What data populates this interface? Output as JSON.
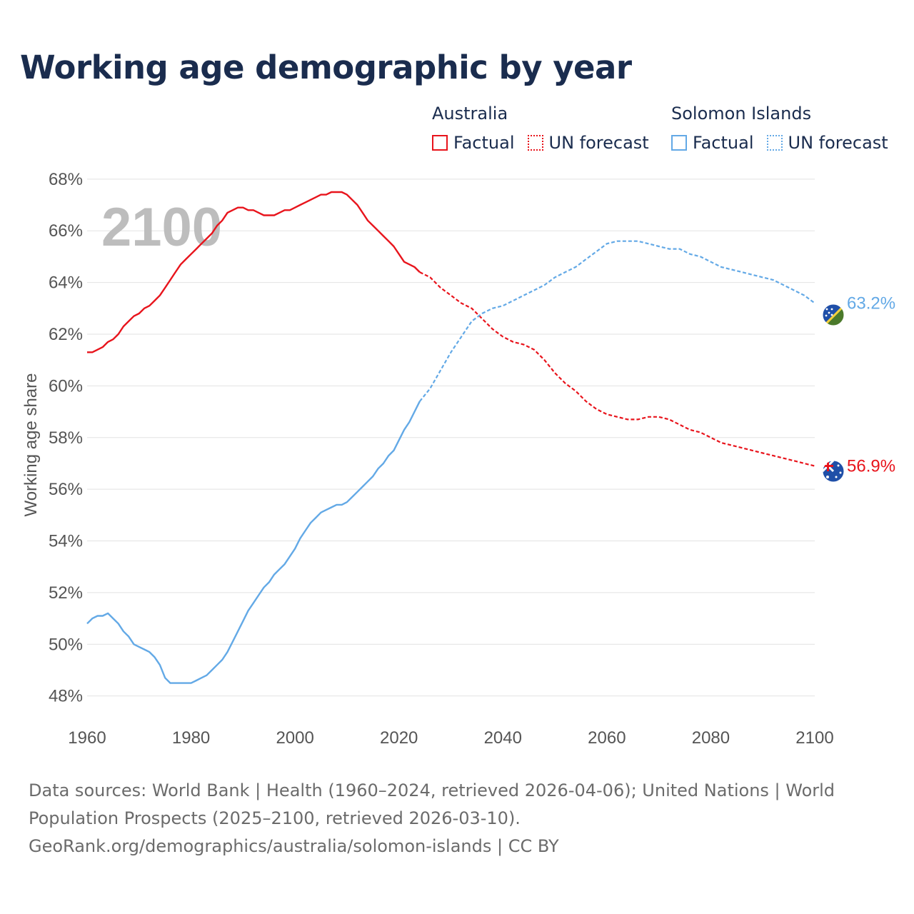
{
  "page": {
    "title": "Working age demographic by year",
    "footer_sources": "Data sources: World Bank | Health (1960–2024, retrieved 2026-04-06); United Nations | World Population Prospects (2025–2100, retrieved 2026-03-10).",
    "footer_link": "GeoRank.org/demographics/australia/solomon-islands | CC BY"
  },
  "legend": {
    "groups": [
      {
        "name": "Australia",
        "factual_label": "Factual",
        "forecast_label": "UN forecast",
        "color": "#e8141c"
      },
      {
        "name": "Solomon Islands",
        "factual_label": "Factual",
        "forecast_label": "UN forecast",
        "color": "#63a9e6"
      }
    ]
  },
  "chart_data": {
    "type": "line",
    "title": "Working age demographic by year",
    "xlabel": "",
    "ylabel": "Working age share",
    "year_watermark": "2100",
    "xlim": [
      1960,
      2100
    ],
    "ylim": [
      47.3,
      68.3
    ],
    "x_ticks": [
      1960,
      1980,
      2000,
      2020,
      2040,
      2060,
      2080,
      2100
    ],
    "y_ticks": [
      48,
      50,
      52,
      54,
      56,
      58,
      60,
      62,
      64,
      66,
      68
    ],
    "y_tick_labels": [
      "48%",
      "50%",
      "52%",
      "54%",
      "56%",
      "58%",
      "60%",
      "62%",
      "64%",
      "66%",
      "68%"
    ],
    "forecast_start": 2024,
    "series": [
      {
        "name": "Australia",
        "color": "#e8141c",
        "end_label": "56.9%",
        "points": [
          [
            1960,
            61.3
          ],
          [
            1961,
            61.3
          ],
          [
            1962,
            61.4
          ],
          [
            1963,
            61.5
          ],
          [
            1964,
            61.7
          ],
          [
            1965,
            61.8
          ],
          [
            1966,
            62.0
          ],
          [
            1967,
            62.3
          ],
          [
            1968,
            62.5
          ],
          [
            1969,
            62.7
          ],
          [
            1970,
            62.8
          ],
          [
            1971,
            63.0
          ],
          [
            1972,
            63.1
          ],
          [
            1973,
            63.3
          ],
          [
            1974,
            63.5
          ],
          [
            1975,
            63.8
          ],
          [
            1976,
            64.1
          ],
          [
            1977,
            64.4
          ],
          [
            1978,
            64.7
          ],
          [
            1979,
            64.9
          ],
          [
            1980,
            65.1
          ],
          [
            1981,
            65.3
          ],
          [
            1982,
            65.5
          ],
          [
            1983,
            65.7
          ],
          [
            1984,
            65.9
          ],
          [
            1985,
            66.2
          ],
          [
            1986,
            66.4
          ],
          [
            1987,
            66.7
          ],
          [
            1988,
            66.8
          ],
          [
            1989,
            66.9
          ],
          [
            1990,
            66.9
          ],
          [
            1991,
            66.8
          ],
          [
            1992,
            66.8
          ],
          [
            1993,
            66.7
          ],
          [
            1994,
            66.6
          ],
          [
            1995,
            66.6
          ],
          [
            1996,
            66.6
          ],
          [
            1997,
            66.7
          ],
          [
            1998,
            66.8
          ],
          [
            1999,
            66.8
          ],
          [
            2000,
            66.9
          ],
          [
            2001,
            67.0
          ],
          [
            2002,
            67.1
          ],
          [
            2003,
            67.2
          ],
          [
            2004,
            67.3
          ],
          [
            2005,
            67.4
          ],
          [
            2006,
            67.4
          ],
          [
            2007,
            67.5
          ],
          [
            2008,
            67.5
          ],
          [
            2009,
            67.5
          ],
          [
            2010,
            67.4
          ],
          [
            2011,
            67.2
          ],
          [
            2012,
            67.0
          ],
          [
            2013,
            66.7
          ],
          [
            2014,
            66.4
          ],
          [
            2015,
            66.2
          ],
          [
            2016,
            66.0
          ],
          [
            2017,
            65.8
          ],
          [
            2018,
            65.6
          ],
          [
            2019,
            65.4
          ],
          [
            2020,
            65.1
          ],
          [
            2021,
            64.8
          ],
          [
            2022,
            64.7
          ],
          [
            2023,
            64.6
          ],
          [
            2024,
            64.4
          ],
          [
            2026,
            64.2
          ],
          [
            2028,
            63.8
          ],
          [
            2030,
            63.5
          ],
          [
            2032,
            63.2
          ],
          [
            2034,
            63.0
          ],
          [
            2036,
            62.6
          ],
          [
            2038,
            62.2
          ],
          [
            2040,
            61.9
          ],
          [
            2042,
            61.7
          ],
          [
            2044,
            61.6
          ],
          [
            2046,
            61.4
          ],
          [
            2048,
            61.0
          ],
          [
            2050,
            60.5
          ],
          [
            2052,
            60.1
          ],
          [
            2054,
            59.8
          ],
          [
            2056,
            59.4
          ],
          [
            2058,
            59.1
          ],
          [
            2060,
            58.9
          ],
          [
            2062,
            58.8
          ],
          [
            2064,
            58.7
          ],
          [
            2066,
            58.7
          ],
          [
            2068,
            58.8
          ],
          [
            2070,
            58.8
          ],
          [
            2072,
            58.7
          ],
          [
            2074,
            58.5
          ],
          [
            2076,
            58.3
          ],
          [
            2078,
            58.2
          ],
          [
            2080,
            58.0
          ],
          [
            2082,
            57.8
          ],
          [
            2084,
            57.7
          ],
          [
            2086,
            57.6
          ],
          [
            2088,
            57.5
          ],
          [
            2090,
            57.4
          ],
          [
            2092,
            57.3
          ],
          [
            2094,
            57.2
          ],
          [
            2096,
            57.1
          ],
          [
            2098,
            57.0
          ],
          [
            2100,
            56.9
          ]
        ]
      },
      {
        "name": "Solomon Islands",
        "color": "#63a9e6",
        "end_label": "63.2%",
        "points": [
          [
            1960,
            50.8
          ],
          [
            1961,
            51.0
          ],
          [
            1962,
            51.1
          ],
          [
            1963,
            51.1
          ],
          [
            1964,
            51.2
          ],
          [
            1965,
            51.0
          ],
          [
            1966,
            50.8
          ],
          [
            1967,
            50.5
          ],
          [
            1968,
            50.3
          ],
          [
            1969,
            50.0
          ],
          [
            1970,
            49.9
          ],
          [
            1971,
            49.8
          ],
          [
            1972,
            49.7
          ],
          [
            1973,
            49.5
          ],
          [
            1974,
            49.2
          ],
          [
            1975,
            48.7
          ],
          [
            1976,
            48.5
          ],
          [
            1977,
            48.5
          ],
          [
            1978,
            48.5
          ],
          [
            1979,
            48.5
          ],
          [
            1980,
            48.5
          ],
          [
            1981,
            48.6
          ],
          [
            1982,
            48.7
          ],
          [
            1983,
            48.8
          ],
          [
            1984,
            49.0
          ],
          [
            1985,
            49.2
          ],
          [
            1986,
            49.4
          ],
          [
            1987,
            49.7
          ],
          [
            1988,
            50.1
          ],
          [
            1989,
            50.5
          ],
          [
            1990,
            50.9
          ],
          [
            1991,
            51.3
          ],
          [
            1992,
            51.6
          ],
          [
            1993,
            51.9
          ],
          [
            1994,
            52.2
          ],
          [
            1995,
            52.4
          ],
          [
            1996,
            52.7
          ],
          [
            1997,
            52.9
          ],
          [
            1998,
            53.1
          ],
          [
            1999,
            53.4
          ],
          [
            2000,
            53.7
          ],
          [
            2001,
            54.1
          ],
          [
            2002,
            54.4
          ],
          [
            2003,
            54.7
          ],
          [
            2004,
            54.9
          ],
          [
            2005,
            55.1
          ],
          [
            2006,
            55.2
          ],
          [
            2007,
            55.3
          ],
          [
            2008,
            55.4
          ],
          [
            2009,
            55.4
          ],
          [
            2010,
            55.5
          ],
          [
            2011,
            55.7
          ],
          [
            2012,
            55.9
          ],
          [
            2013,
            56.1
          ],
          [
            2014,
            56.3
          ],
          [
            2015,
            56.5
          ],
          [
            2016,
            56.8
          ],
          [
            2017,
            57.0
          ],
          [
            2018,
            57.3
          ],
          [
            2019,
            57.5
          ],
          [
            2020,
            57.9
          ],
          [
            2021,
            58.3
          ],
          [
            2022,
            58.6
          ],
          [
            2023,
            59.0
          ],
          [
            2024,
            59.4
          ],
          [
            2026,
            59.9
          ],
          [
            2028,
            60.6
          ],
          [
            2030,
            61.3
          ],
          [
            2032,
            61.9
          ],
          [
            2034,
            62.5
          ],
          [
            2036,
            62.8
          ],
          [
            2038,
            63.0
          ],
          [
            2040,
            63.1
          ],
          [
            2042,
            63.3
          ],
          [
            2044,
            63.5
          ],
          [
            2046,
            63.7
          ],
          [
            2048,
            63.9
          ],
          [
            2050,
            64.2
          ],
          [
            2052,
            64.4
          ],
          [
            2054,
            64.6
          ],
          [
            2056,
            64.9
          ],
          [
            2058,
            65.2
          ],
          [
            2060,
            65.5
          ],
          [
            2062,
            65.6
          ],
          [
            2064,
            65.6
          ],
          [
            2066,
            65.6
          ],
          [
            2068,
            65.5
          ],
          [
            2070,
            65.4
          ],
          [
            2072,
            65.3
          ],
          [
            2074,
            65.3
          ],
          [
            2076,
            65.1
          ],
          [
            2078,
            65.0
          ],
          [
            2080,
            64.8
          ],
          [
            2082,
            64.6
          ],
          [
            2084,
            64.5
          ],
          [
            2086,
            64.4
          ],
          [
            2088,
            64.3
          ],
          [
            2090,
            64.2
          ],
          [
            2092,
            64.1
          ],
          [
            2094,
            63.9
          ],
          [
            2096,
            63.7
          ],
          [
            2098,
            63.5
          ],
          [
            2100,
            63.2
          ]
        ]
      }
    ]
  }
}
